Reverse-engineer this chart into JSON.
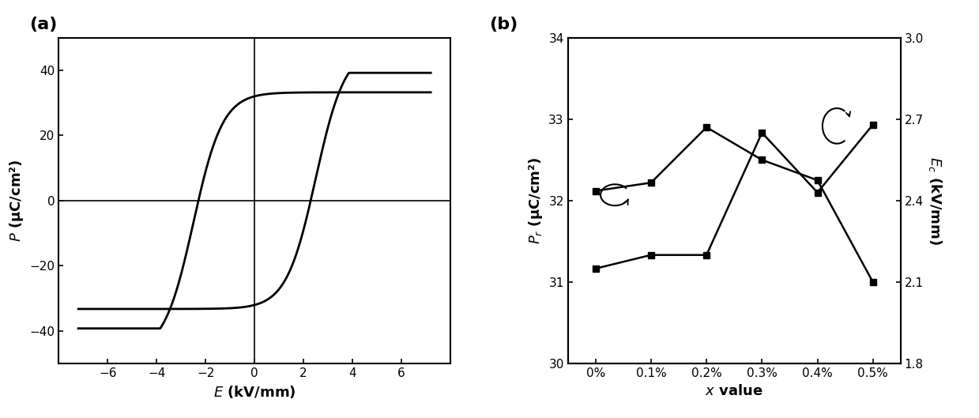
{
  "panel_a_label": "(a)",
  "panel_b_label": "(b)",
  "hysteresis": {
    "xlim": [
      -8,
      8
    ],
    "ylim": [
      -50,
      50
    ],
    "xticks": [
      -6,
      -4,
      -2,
      0,
      2,
      4,
      6
    ],
    "yticks": [
      -40,
      -20,
      0,
      20,
      40
    ],
    "xlabel": "E (kV/mm)",
    "ylabel": "P (μC/cm²)",
    "coercive_field": 2.5,
    "saturation_P": 40,
    "remanent_P": 32
  },
  "x_values": [
    "0%",
    "0.1%",
    "0.2%",
    "0.3%",
    "0.4%",
    "0.5%"
  ],
  "Pr_values": [
    32.12,
    32.22,
    32.9,
    32.5,
    32.25,
    31.0
  ],
  "Ec_values": [
    2.15,
    2.2,
    2.2,
    2.65,
    2.43,
    2.68
  ],
  "Pr_ylim": [
    30,
    34
  ],
  "Pr_yticks": [
    30,
    31,
    32,
    33,
    34
  ],
  "Ec_ylim": [
    1.8,
    3.0
  ],
  "Ec_yticks": [
    1.8,
    2.1,
    2.4,
    2.7,
    3.0
  ],
  "background_color": "#ffffff",
  "line_color": "#000000"
}
